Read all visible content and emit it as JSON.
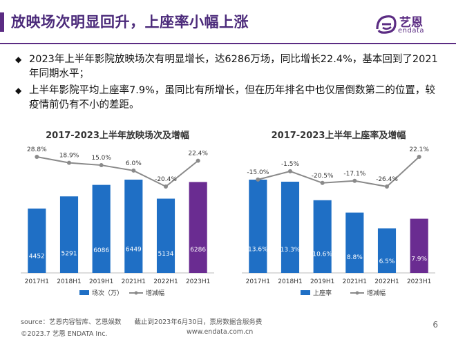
{
  "header": {
    "title": "放映场次明显回升，上座率小幅上涨",
    "logo_text_cn": "艺恩",
    "logo_text_en": "endata"
  },
  "bullets": [
    {
      "mark": "◆",
      "text": "2023年上半年影院放映场次有明显增长，达6286万场，同比增长22.4%，基本回到了2021年同期水平；"
    },
    {
      "mark": "◆",
      "text": "上半年影院平均上座率7.9%，虽同比有所增长，但在历年排名中也仅居倒数第二的位置，较疫情前仍有不小的差距。"
    }
  ],
  "colors": {
    "blue": "#1f6fc5",
    "purple": "#6a2c91",
    "line": "#8a8a8a",
    "brand": "#5b2c83"
  },
  "chart_data": [
    {
      "type": "bar",
      "title": "2017-2023上半年放映场次及增幅",
      "categories": [
        "2017H1",
        "2018H1",
        "2019H1",
        "2021H1",
        "2022H1",
        "2023H1"
      ],
      "series": [
        {
          "name": "场次（万）",
          "type": "bar",
          "values": [
            4452,
            5291,
            6086,
            6449,
            5134,
            6286
          ],
          "labels": [
            "4452",
            "5291",
            "6086",
            "6449",
            "5134",
            "6286"
          ]
        },
        {
          "name": "增减幅",
          "type": "line",
          "values": [
            28.8,
            18.9,
            15.0,
            6.0,
            -20.4,
            22.4
          ],
          "labels": [
            "28.8%",
            "18.9%",
            "15.0%",
            "6.0%",
            "-20.4%",
            "22.4%"
          ]
        }
      ],
      "highlight_index": 5,
      "legend": [
        "场次（万）",
        "增减幅"
      ],
      "legend_position": "bottom"
    },
    {
      "type": "bar",
      "title": "2017-2023上半年上座率及增幅",
      "categories": [
        "2017H1",
        "2018H1",
        "2019H1",
        "2021H1",
        "2022H1",
        "2023H1"
      ],
      "series": [
        {
          "name": "上座率",
          "type": "bar",
          "values": [
            13.6,
            13.3,
            10.6,
            8.8,
            6.5,
            7.9
          ],
          "labels": [
            "13.6%",
            "13.3%",
            "10.6%",
            "8.8%",
            "6.5%",
            "7.9%"
          ]
        },
        {
          "name": "增减幅",
          "type": "line",
          "values": [
            -15.0,
            -1.5,
            -20.5,
            -17.1,
            -26.4,
            22.1
          ],
          "labels": [
            "-15.0%",
            "-1.5%",
            "-20.5%",
            "-17.1%",
            "-26.4%",
            "22.1%"
          ]
        }
      ],
      "highlight_index": 5,
      "legend": [
        "上座率",
        "增减幅"
      ],
      "legend_position": "bottom"
    }
  ],
  "footer": {
    "source": "source：艺恩内容智库、艺恩娱数　　截止到2023年6月30日，票房数据含服务费",
    "copyright": "©2023.7 艺恩 ENDATA Inc.",
    "url": "www.endata.com.cn",
    "page": "6"
  }
}
